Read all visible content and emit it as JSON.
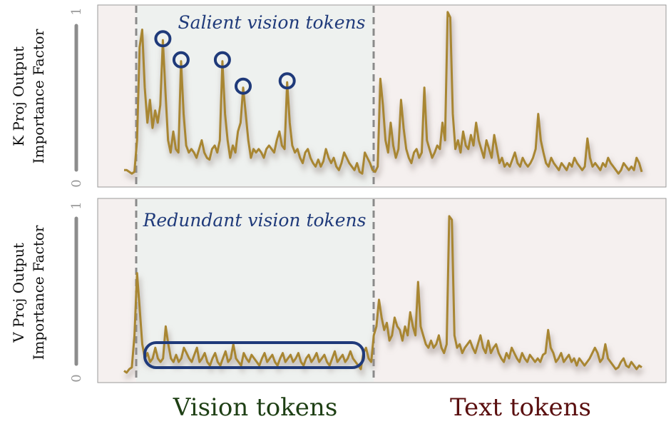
{
  "colors": {
    "line": "#A88632",
    "panel_bg": "#F5F0EF",
    "vision_region_bg": "#EEF1EF",
    "divider": "#8A8A8A",
    "annotation": "#1F3A7A",
    "vision_label": "#1E3F14",
    "text_label": "#5A0F0F"
  },
  "bottom_labels": {
    "vision": "Vision tokens",
    "text": "Text tokens"
  },
  "chart_data": [
    {
      "type": "line",
      "panel": "K Proj",
      "ylabel": [
        "K Proj Output",
        "Importance Factor"
      ],
      "ylim": [
        0,
        1
      ],
      "yticks": [
        "0",
        "1"
      ],
      "annotation": "Salient vision tokens",
      "highlighted_peaks": [
        15,
        22,
        38,
        46,
        63
      ],
      "regions": {
        "vision": [
          4,
          93
        ],
        "text": [
          93,
          200
        ]
      },
      "series": [
        {
          "values": [
            0.08,
            0.08,
            0.07,
            0.06,
            0.07,
            0.25,
            0.78,
            0.88,
            0.55,
            0.35,
            0.48,
            0.32,
            0.42,
            0.35,
            0.45,
            0.82,
            0.52,
            0.25,
            0.18,
            0.3,
            0.2,
            0.18,
            0.7,
            0.4,
            0.22,
            0.18,
            0.2,
            0.18,
            0.15,
            0.2,
            0.25,
            0.18,
            0.15,
            0.14,
            0.2,
            0.22,
            0.18,
            0.25,
            0.7,
            0.4,
            0.25,
            0.15,
            0.22,
            0.18,
            0.3,
            0.35,
            0.55,
            0.4,
            0.25,
            0.15,
            0.2,
            0.18,
            0.2,
            0.18,
            0.15,
            0.2,
            0.22,
            0.2,
            0.18,
            0.25,
            0.3,
            0.22,
            0.2,
            0.58,
            0.35,
            0.22,
            0.18,
            0.2,
            0.15,
            0.12,
            0.18,
            0.2,
            0.15,
            0.12,
            0.1,
            0.14,
            0.1,
            0.13,
            0.2,
            0.15,
            0.12,
            0.15,
            0.1,
            0.08,
            0.12,
            0.18,
            0.15,
            0.12,
            0.1,
            0.08,
            0.12,
            0.07,
            0.06,
            0.18,
            0.15,
            0.12,
            0.08,
            0.07,
            0.1,
            0.6,
            0.45,
            0.25,
            0.18,
            0.35,
            0.22,
            0.15,
            0.2,
            0.48,
            0.32,
            0.2,
            0.15,
            0.12,
            0.18,
            0.2,
            0.15,
            0.18,
            0.55,
            0.25,
            0.2,
            0.15,
            0.18,
            0.22,
            0.2,
            0.35,
            0.25,
            0.98,
            0.95,
            0.4,
            0.2,
            0.25,
            0.18,
            0.3,
            0.22,
            0.2,
            0.28,
            0.22,
            0.35,
            0.25,
            0.2,
            0.15,
            0.25,
            0.2,
            0.15,
            0.28,
            0.2,
            0.12,
            0.15,
            0.1,
            0.12,
            0.1,
            0.14,
            0.18,
            0.12,
            0.1,
            0.15,
            0.12,
            0.1,
            0.12,
            0.15,
            0.2,
            0.4,
            0.25,
            0.18,
            0.12,
            0.1,
            0.15,
            0.12,
            0.1,
            0.08,
            0.12,
            0.1,
            0.08,
            0.12,
            0.1,
            0.15,
            0.12,
            0.1,
            0.08,
            0.1,
            0.26,
            0.15,
            0.1,
            0.12,
            0.1,
            0.08,
            0.12,
            0.1,
            0.15,
            0.12,
            0.1,
            0.08,
            0.06,
            0.08,
            0.12,
            0.1,
            0.08,
            0.1,
            0.08,
            0.15,
            0.12,
            0.07
          ]
        }
      ]
    },
    {
      "type": "line",
      "panel": "V Proj",
      "ylabel": [
        "V Proj Output",
        "Importance Factor"
      ],
      "ylim": [
        0,
        1
      ],
      "yticks": [
        "0",
        "1"
      ],
      "annotation": "Redundant vision tokens",
      "regions": {
        "vision": [
          4,
          93
        ],
        "text": [
          93,
          200
        ]
      },
      "series": [
        {
          "values": [
            0.05,
            0.04,
            0.06,
            0.07,
            0.25,
            0.6,
            0.4,
            0.2,
            0.12,
            0.15,
            0.1,
            0.12,
            0.18,
            0.12,
            0.1,
            0.12,
            0.3,
            0.2,
            0.12,
            0.1,
            0.14,
            0.1,
            0.12,
            0.18,
            0.15,
            0.12,
            0.1,
            0.14,
            0.18,
            0.1,
            0.12,
            0.15,
            0.1,
            0.08,
            0.12,
            0.15,
            0.1,
            0.08,
            0.12,
            0.16,
            0.1,
            0.12,
            0.2,
            0.12,
            0.1,
            0.08,
            0.15,
            0.12,
            0.1,
            0.14,
            0.12,
            0.1,
            0.08,
            0.12,
            0.15,
            0.1,
            0.12,
            0.14,
            0.1,
            0.08,
            0.12,
            0.15,
            0.1,
            0.12,
            0.14,
            0.1,
            0.12,
            0.15,
            0.1,
            0.08,
            0.12,
            0.14,
            0.1,
            0.12,
            0.15,
            0.1,
            0.12,
            0.14,
            0.1,
            0.08,
            0.12,
            0.16,
            0.1,
            0.12,
            0.14,
            0.1,
            0.12,
            0.16,
            0.12,
            0.1,
            0.08,
            0.06,
            0.15,
            0.18,
            0.12,
            0.1,
            0.25,
            0.3,
            0.45,
            0.35,
            0.28,
            0.32,
            0.22,
            0.25,
            0.35,
            0.3,
            0.28,
            0.22,
            0.3,
            0.25,
            0.38,
            0.3,
            0.25,
            0.55,
            0.3,
            0.25,
            0.2,
            0.18,
            0.22,
            0.18,
            0.2,
            0.25,
            0.18,
            0.15,
            0.2,
            0.92,
            0.9,
            0.25,
            0.18,
            0.2,
            0.15,
            0.18,
            0.2,
            0.22,
            0.18,
            0.15,
            0.2,
            0.25,
            0.18,
            0.15,
            0.22,
            0.15,
            0.18,
            0.2,
            0.15,
            0.12,
            0.1,
            0.15,
            0.12,
            0.18,
            0.15,
            0.12,
            0.1,
            0.15,
            0.12,
            0.1,
            0.14,
            0.12,
            0.1,
            0.12,
            0.1,
            0.14,
            0.15,
            0.28,
            0.18,
            0.15,
            0.1,
            0.12,
            0.15,
            0.1,
            0.12,
            0.14,
            0.1,
            0.12,
            0.08,
            0.12,
            0.1,
            0.08,
            0.1,
            0.12,
            0.15,
            0.18,
            0.15,
            0.1,
            0.12,
            0.2,
            0.12,
            0.1,
            0.08,
            0.06,
            0.07,
            0.1,
            0.12,
            0.08,
            0.07,
            0.1,
            0.08,
            0.06,
            0.08,
            0.07
          ]
        }
      ]
    }
  ]
}
